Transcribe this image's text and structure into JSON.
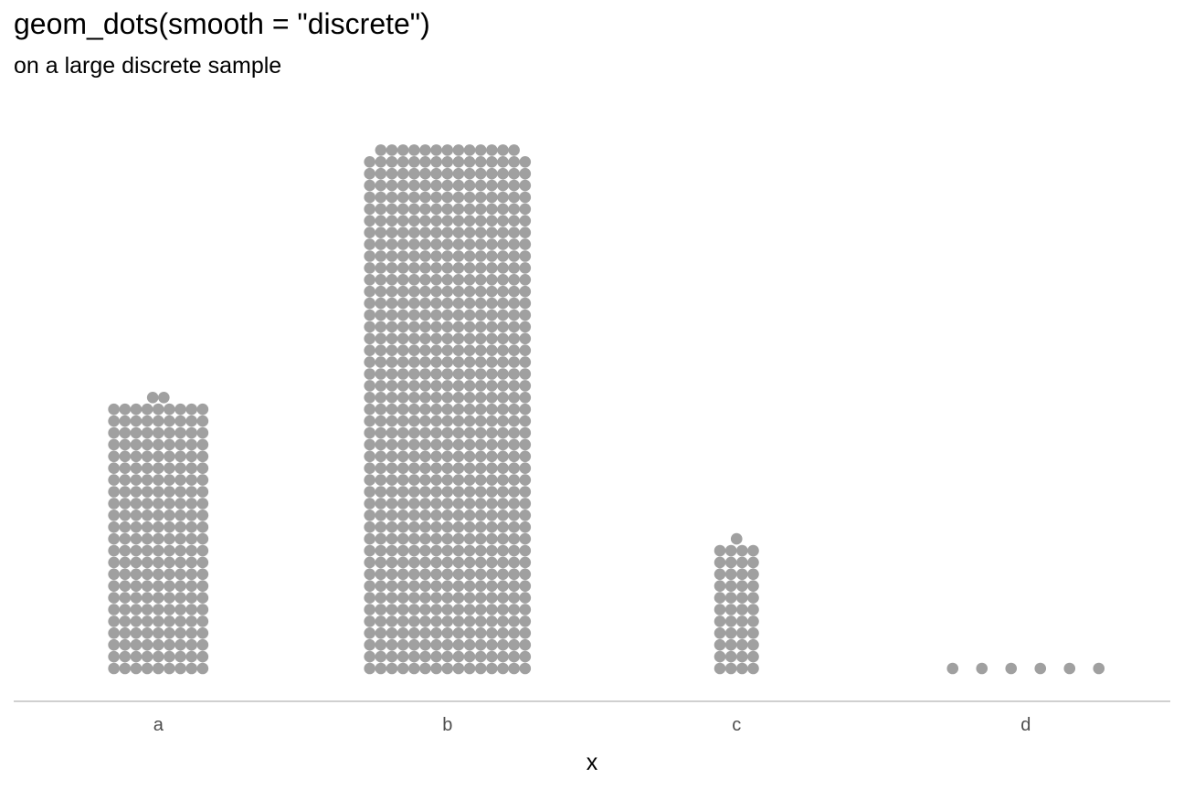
{
  "chart_data": {
    "type": "dotplot",
    "title": "geom_dots(smooth = \"discrete\")",
    "subtitle": "on a large discrete sample",
    "xlabel": "x",
    "ylabel": "",
    "categories": [
      "a",
      "b",
      "c",
      "d"
    ],
    "values": [
      209,
      673,
      45,
      6
    ],
    "grid": false,
    "legend": "none",
    "colors": {
      "dot": "#a0a0a0",
      "axis_line": "#b3b3b3",
      "tick_label": "#4d4d4d"
    }
  }
}
